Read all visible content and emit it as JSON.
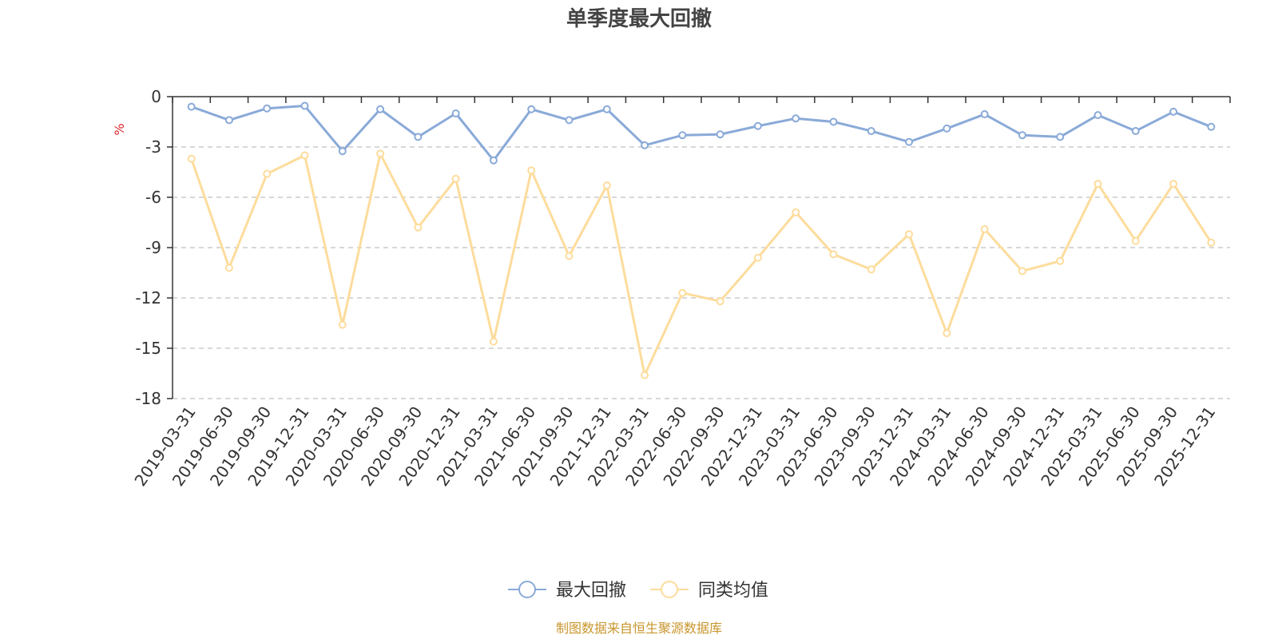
{
  "chart_data": {
    "type": "line",
    "title": "单季度最大回撤",
    "ylabel": "%",
    "ylim": [
      -18,
      0
    ],
    "yticks": [
      0,
      -3,
      -6,
      -9,
      -12,
      -15,
      -18
    ],
    "grid": "horizontal dashed",
    "legend_position": "bottom-center",
    "categories": [
      "2019-03-31",
      "2019-06-30",
      "2019-09-30",
      "2019-12-31",
      "2020-03-31",
      "2020-06-30",
      "2020-09-30",
      "2020-12-31",
      "2021-03-31",
      "2021-06-30",
      "2021-09-30",
      "2021-12-31",
      "2022-03-31",
      "2022-06-30",
      "2022-09-30",
      "2022-12-31",
      "2023-03-31",
      "2023-06-30",
      "2023-09-30",
      "2023-12-31",
      "2024-03-31",
      "2024-06-30",
      "2024-09-30",
      "2024-12-31",
      "2025-03-31",
      "2025-06-30",
      "2025-09-30",
      "2025-12-31"
    ],
    "series": [
      {
        "name": "最大回撤",
        "color": "#8aaad8",
        "values": [
          -0.6,
          -1.4,
          -0.7,
          -0.55,
          -3.25,
          -0.75,
          -2.4,
          -1.0,
          -3.8,
          -0.75,
          -1.4,
          -0.75,
          -2.9,
          -2.3,
          -2.25,
          -1.75,
          -1.3,
          -1.5,
          -2.05,
          -2.7,
          -1.9,
          -1.05,
          -2.3,
          -2.4,
          -1.1,
          -2.05,
          -0.9,
          -1.8
        ]
      },
      {
        "name": "同类均值",
        "color": "#fddc9c",
        "values": [
          -3.7,
          -10.2,
          -4.6,
          -3.5,
          -13.6,
          -3.4,
          -7.8,
          -4.9,
          -14.6,
          -4.4,
          -9.5,
          -5.3,
          -16.6,
          -11.7,
          -12.2,
          -9.6,
          -6.9,
          -9.4,
          -10.3,
          -8.2,
          -14.1,
          -7.9,
          -10.4,
          -9.8,
          -5.2,
          -8.6,
          -5.2,
          -8.7
        ]
      }
    ]
  },
  "source_note": "制图数据来自恒生聚源数据库"
}
